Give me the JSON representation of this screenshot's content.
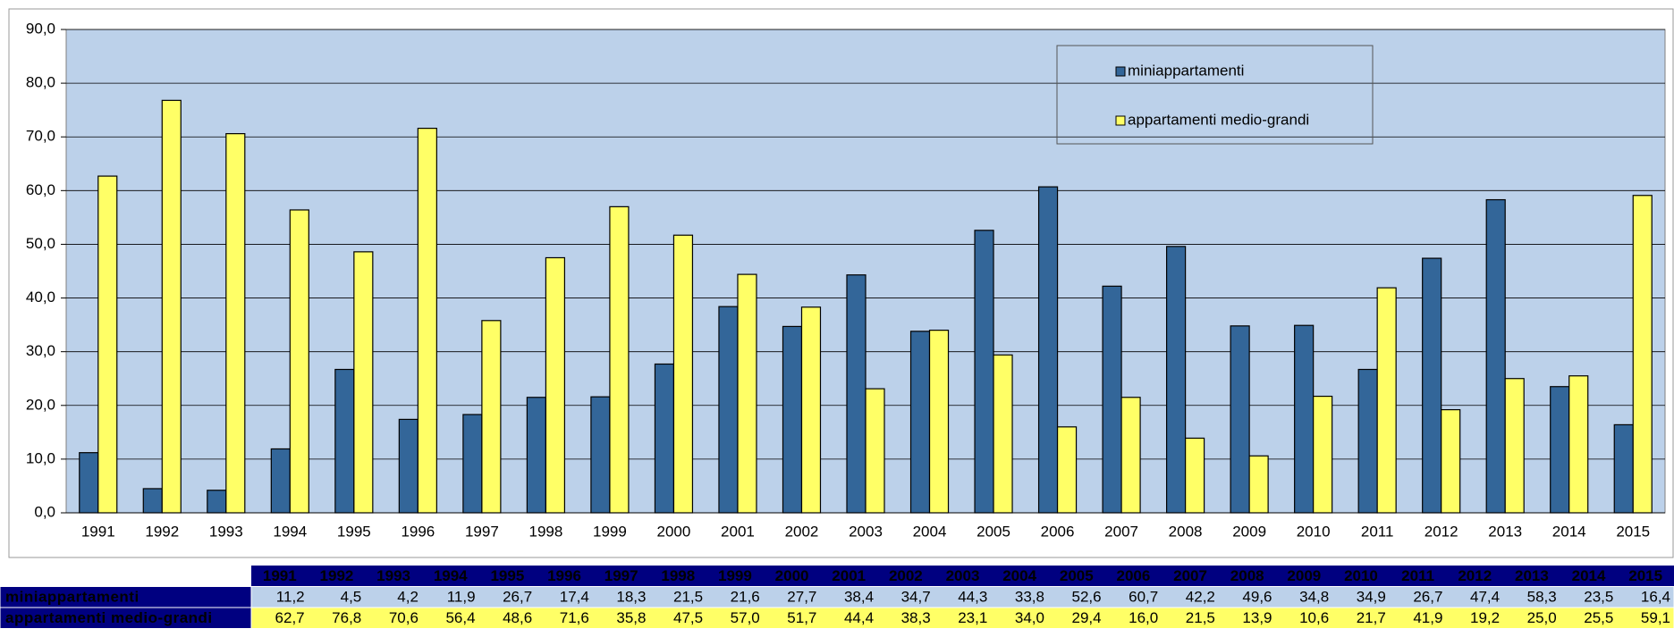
{
  "chart_data": {
    "type": "bar",
    "categories": [
      "1991",
      "1992",
      "1993",
      "1994",
      "1995",
      "1996",
      "1997",
      "1998",
      "1999",
      "2000",
      "2001",
      "2002",
      "2003",
      "2004",
      "2005",
      "2006",
      "2007",
      "2008",
      "2009",
      "2010",
      "2011",
      "2012",
      "2013",
      "2014",
      "2015"
    ],
    "series": [
      {
        "name": "miniappartamenti",
        "color": "#336699",
        "values": [
          11.2,
          4.5,
          4.2,
          11.9,
          26.7,
          17.4,
          18.3,
          21.5,
          21.6,
          27.7,
          38.4,
          34.7,
          44.3,
          33.8,
          52.6,
          60.7,
          42.2,
          49.6,
          34.8,
          34.9,
          26.7,
          47.4,
          58.3,
          23.5,
          16.4
        ],
        "value_labels": [
          "11,2",
          "4,5",
          "4,2",
          "11,9",
          "26,7",
          "17,4",
          "18,3",
          "21,5",
          "21,6",
          "27,7",
          "38,4",
          "34,7",
          "44,3",
          "33,8",
          "52,6",
          "60,7",
          "42,2",
          "49,6",
          "34,8",
          "34,9",
          "26,7",
          "47,4",
          "58,3",
          "23,5",
          "16,4"
        ]
      },
      {
        "name": "appartamenti medio-grandi",
        "color": "#ffff66",
        "values": [
          62.7,
          76.8,
          70.6,
          56.4,
          48.6,
          71.6,
          35.8,
          47.5,
          57.0,
          51.7,
          44.4,
          38.3,
          23.1,
          34.0,
          29.4,
          16.0,
          21.5,
          13.9,
          10.6,
          21.7,
          41.9,
          19.2,
          25.0,
          25.5,
          59.1
        ],
        "value_labels": [
          "62,7",
          "76,8",
          "70,6",
          "56,4",
          "48,6",
          "71,6",
          "35,8",
          "47,5",
          "57,0",
          "51,7",
          "44,4",
          "38,3",
          "23,1",
          "34,0",
          "29,4",
          "16,0",
          "21,5",
          "13,9",
          "10,6",
          "21,7",
          "41,9",
          "19,2",
          "25,0",
          "25,5",
          "59,1"
        ]
      }
    ],
    "ylim": [
      0,
      90
    ],
    "yticks": [
      {
        "value": 0,
        "label": "0,0"
      },
      {
        "value": 10,
        "label": "10,0"
      },
      {
        "value": 20,
        "label": "20,0"
      },
      {
        "value": 30,
        "label": "30,0"
      },
      {
        "value": 40,
        "label": "40,0"
      },
      {
        "value": 50,
        "label": "50,0"
      },
      {
        "value": 60,
        "label": "60,0"
      },
      {
        "value": 70,
        "label": "70,0"
      },
      {
        "value": 80,
        "label": "80,0"
      },
      {
        "value": 90,
        "label": "90,0"
      }
    ],
    "grid": true,
    "legend": "top-right"
  }
}
